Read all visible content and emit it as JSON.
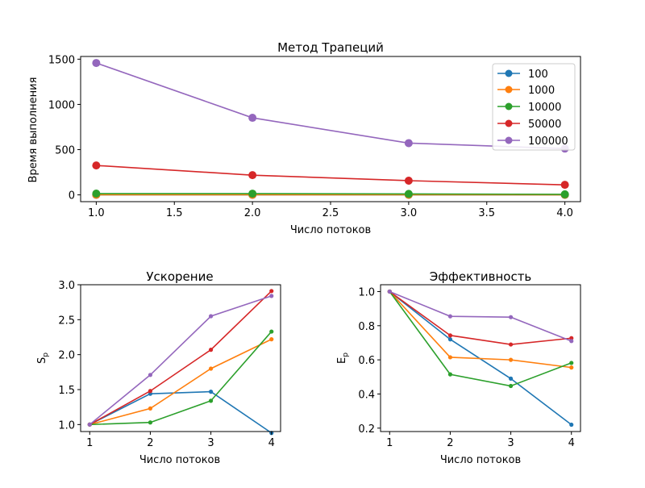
{
  "colors": {
    "100": "#1f77b4",
    "1000": "#ff7f0e",
    "10000": "#2ca02c",
    "50000": "#d62728",
    "100000": "#9467bd"
  },
  "chart_data": [
    {
      "type": "line",
      "title": "Метод Трапеций",
      "xlabel": "Число потоков",
      "ylabel": "Время выполнения",
      "x": [
        1,
        2,
        3,
        4
      ],
      "xlim": [
        0.9,
        4.1
      ],
      "ylim": [
        -75,
        1530
      ],
      "xticks": [
        "1.0",
        "1.5",
        "2.0",
        "2.5",
        "3.0",
        "3.5",
        "4.0"
      ],
      "xtick_values": [
        1.0,
        1.5,
        2.0,
        2.5,
        3.0,
        3.5,
        4.0
      ],
      "yticks": [
        "0",
        "500",
        "1000",
        "1500"
      ],
      "ytick_values": [
        0,
        500,
        1000,
        1500
      ],
      "legend": "top-right",
      "markers": "large",
      "series": [
        {
          "name": "100",
          "values": [
            0.05,
            0.035,
            0.034,
            0.057
          ]
        },
        {
          "name": "1000",
          "values": [
            1.5,
            0.98,
            0.83,
            0.67
          ]
        },
        {
          "name": "10000",
          "values": [
            14,
            13.6,
            10.4,
            6
          ]
        },
        {
          "name": "50000",
          "values": [
            325,
            218,
            157,
            111
          ]
        },
        {
          "name": "100000",
          "values": [
            1458,
            852,
            572,
            512
          ]
        }
      ]
    },
    {
      "type": "line",
      "title": "Ускорение",
      "xlabel": "Число потоков",
      "ylabel": "S",
      "ylabel_sub": "p",
      "x": [
        1,
        2,
        3,
        4
      ],
      "xlim": [
        0.85,
        4.15
      ],
      "ylim": [
        0.9,
        3.0
      ],
      "xticks": [
        "1",
        "2",
        "3",
        "4"
      ],
      "xtick_values": [
        1,
        2,
        3,
        4
      ],
      "yticks": [
        "1.0",
        "1.5",
        "2.0",
        "2.5",
        "3.0"
      ],
      "ytick_values": [
        1.0,
        1.5,
        2.0,
        2.5,
        3.0
      ],
      "markers": "small",
      "series": [
        {
          "key": "100",
          "values": [
            1.0,
            1.44,
            1.47,
            0.88
          ]
        },
        {
          "key": "1000",
          "values": [
            1.0,
            1.23,
            1.8,
            2.22
          ]
        },
        {
          "key": "10000",
          "values": [
            1.0,
            1.03,
            1.34,
            2.33
          ]
        },
        {
          "key": "50000",
          "values": [
            1.0,
            1.48,
            2.07,
            2.91
          ]
        },
        {
          "key": "100000",
          "values": [
            1.0,
            1.71,
            2.55,
            2.84
          ]
        }
      ]
    },
    {
      "type": "line",
      "title": "Эффективность",
      "xlabel": "Число потоков",
      "ylabel": "E",
      "ylabel_sub": "p",
      "x": [
        1,
        2,
        3,
        4
      ],
      "xlim": [
        0.85,
        4.15
      ],
      "ylim": [
        0.18,
        1.04
      ],
      "xticks": [
        "1",
        "2",
        "3",
        "4"
      ],
      "xtick_values": [
        1,
        2,
        3,
        4
      ],
      "yticks": [
        "0.2",
        "0.4",
        "0.6",
        "0.8",
        "1.0"
      ],
      "ytick_values": [
        0.2,
        0.4,
        0.6,
        0.8,
        1.0
      ],
      "markers": "small",
      "series": [
        {
          "key": "100",
          "values": [
            1.0,
            0.72,
            0.49,
            0.22
          ]
        },
        {
          "key": "1000",
          "values": [
            1.0,
            0.615,
            0.6,
            0.555
          ]
        },
        {
          "key": "10000",
          "values": [
            1.0,
            0.515,
            0.447,
            0.582
          ]
        },
        {
          "key": "50000",
          "values": [
            1.0,
            0.743,
            0.69,
            0.727
          ]
        },
        {
          "key": "100000",
          "values": [
            1.0,
            0.855,
            0.85,
            0.71
          ]
        }
      ]
    }
  ]
}
